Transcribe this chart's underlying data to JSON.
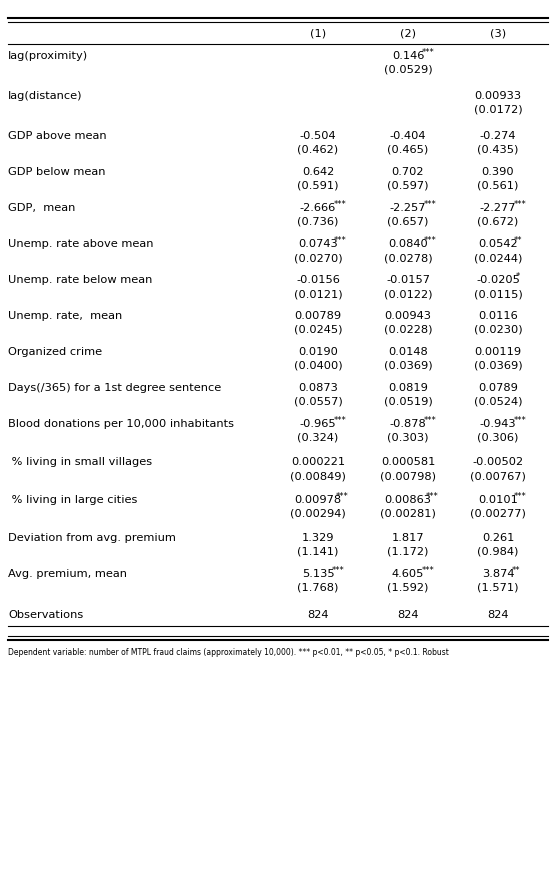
{
  "col_headers": [
    "",
    "(1)",
    "(2)",
    "(3)"
  ],
  "rows": [
    {
      "var": "lag(proximity)",
      "c1": "",
      "c1s": "",
      "c2": "0.146",
      "c2s": "***",
      "c3": "",
      "c3s": ""
    },
    {
      "var": "",
      "c1": "",
      "c1s": "",
      "c2": "(0.0529)",
      "c2s": "",
      "c3": "",
      "c3s": ""
    },
    {
      "var": "lag(distance)",
      "c1": "",
      "c1s": "",
      "c2": "",
      "c2s": "",
      "c3": "0.00933",
      "c3s": ""
    },
    {
      "var": "",
      "c1": "",
      "c1s": "",
      "c2": "",
      "c2s": "",
      "c3": "(0.0172)",
      "c3s": ""
    },
    {
      "var": "GDP above mean",
      "c1": "-0.504",
      "c1s": "",
      "c2": "-0.404",
      "c2s": "",
      "c3": "-0.274",
      "c3s": ""
    },
    {
      "var": "",
      "c1": "(0.462)",
      "c1s": "",
      "c2": "(0.465)",
      "c2s": "",
      "c3": "(0.435)",
      "c3s": ""
    },
    {
      "var": "GDP below mean",
      "c1": "0.642",
      "c1s": "",
      "c2": "0.702",
      "c2s": "",
      "c3": "0.390",
      "c3s": ""
    },
    {
      "var": "",
      "c1": "(0.591)",
      "c1s": "",
      "c2": "(0.597)",
      "c2s": "",
      "c3": "(0.561)",
      "c3s": ""
    },
    {
      "var": "GDP,  mean",
      "c1": "-2.666",
      "c1s": "***",
      "c2": "-2.257",
      "c2s": "***",
      "c3": "-2.277",
      "c3s": "***"
    },
    {
      "var": "",
      "c1": "(0.736)",
      "c1s": "",
      "c2": "(0.657)",
      "c2s": "",
      "c3": "(0.672)",
      "c3s": ""
    },
    {
      "var": "Unemp. rate above mean",
      "c1": "0.0743",
      "c1s": "***",
      "c2": "0.0840",
      "c2s": "***",
      "c3": "0.0542",
      "c3s": "**"
    },
    {
      "var": "",
      "c1": "(0.0270)",
      "c1s": "",
      "c2": "(0.0278)",
      "c2s": "",
      "c3": "(0.0244)",
      "c3s": ""
    },
    {
      "var": "Unemp. rate below mean",
      "c1": "-0.0156",
      "c1s": "",
      "c2": "-0.0157",
      "c2s": "",
      "c3": "-0.0205",
      "c3s": "*"
    },
    {
      "var": "",
      "c1": "(0.0121)",
      "c1s": "",
      "c2": "(0.0122)",
      "c2s": "",
      "c3": "(0.0115)",
      "c3s": ""
    },
    {
      "var": "Unemp. rate,  mean",
      "c1": "0.00789",
      "c1s": "",
      "c2": "0.00943",
      "c2s": "",
      "c3": "0.0116",
      "c3s": ""
    },
    {
      "var": "",
      "c1": "(0.0245)",
      "c1s": "",
      "c2": "(0.0228)",
      "c2s": "",
      "c3": "(0.0230)",
      "c3s": ""
    },
    {
      "var": "Organized crime",
      "c1": "0.0190",
      "c1s": "",
      "c2": "0.0148",
      "c2s": "",
      "c3": "0.00119",
      "c3s": ""
    },
    {
      "var": "",
      "c1": "(0.0400)",
      "c1s": "",
      "c2": "(0.0369)",
      "c2s": "",
      "c3": "(0.0369)",
      "c3s": ""
    },
    {
      "var": "Days(/365) for a 1st degree sentence",
      "c1": "0.0873",
      "c1s": "",
      "c2": "0.0819",
      "c2s": "",
      "c3": "0.0789",
      "c3s": ""
    },
    {
      "var": "",
      "c1": "(0.0557)",
      "c1s": "",
      "c2": "(0.0519)",
      "c2s": "",
      "c3": "(0.0524)",
      "c3s": ""
    },
    {
      "var": "Blood donations per 10,000 inhabitants",
      "c1": "-0.965",
      "c1s": "***",
      "c2": "-0.878",
      "c2s": "***",
      "c3": "-0.943",
      "c3s": "***"
    },
    {
      "var": "",
      "c1": "(0.324)",
      "c1s": "",
      "c2": "(0.303)",
      "c2s": "",
      "c3": "(0.306)",
      "c3s": ""
    },
    {
      "var": " % living in small villages",
      "c1": "0.000221",
      "c1s": "",
      "c2": "0.000581",
      "c2s": "",
      "c3": "-0.00502",
      "c3s": ""
    },
    {
      "var": "",
      "c1": "(0.00849)",
      "c1s": "",
      "c2": "(0.00798)",
      "c2s": "",
      "c3": "(0.00767)",
      "c3s": ""
    },
    {
      "var": " % living in large cities",
      "c1": "0.00978",
      "c1s": "***",
      "c2": "0.00863",
      "c2s": "***",
      "c3": "0.0101",
      "c3s": "***"
    },
    {
      "var": "",
      "c1": "(0.00294)",
      "c1s": "",
      "c2": "(0.00281)",
      "c2s": "",
      "c3": "(0.00277)",
      "c3s": ""
    },
    {
      "var": "Deviation from avg. premium",
      "c1": "1.329",
      "c1s": "",
      "c2": "1.817",
      "c2s": "",
      "c3": "0.261",
      "c3s": ""
    },
    {
      "var": "",
      "c1": "(1.141)",
      "c1s": "",
      "c2": "(1.172)",
      "c2s": "",
      "c3": "(0.984)",
      "c3s": ""
    },
    {
      "var": "Avg. premium, mean",
      "c1": "5.135",
      "c1s": "***",
      "c2": "4.605",
      "c2s": "***",
      "c3": "3.874",
      "c3s": "**"
    },
    {
      "var": "",
      "c1": "(1.768)",
      "c1s": "",
      "c2": "(1.592)",
      "c2s": "",
      "c3": "(1.571)",
      "c3s": ""
    },
    {
      "var": "Observations",
      "c1": "824",
      "c1s": "",
      "c2": "824",
      "c2s": "",
      "c3": "824",
      "c3s": ""
    }
  ],
  "footnote": "Dependent variable: number of MTPL fraud claims (approximately 10,000). *** p<0.01, ** p<0.05, * p<0.1. Robust",
  "fs_main": 8.2,
  "fs_star": 6.0,
  "line_color": "black"
}
